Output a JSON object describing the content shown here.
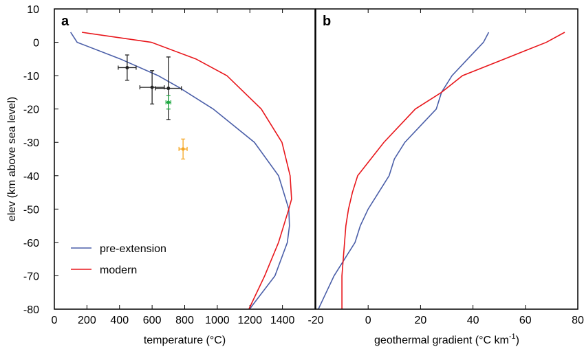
{
  "chart_data": [
    {
      "type": "line",
      "panel_label": "a",
      "xlabel": "temperature (°C)",
      "ylabel": "elev (km above sea level)",
      "xlim": [
        0,
        1600
      ],
      "xticks": [
        0,
        200,
        400,
        600,
        800,
        1000,
        1200,
        1400
      ],
      "ylim": [
        -80,
        10
      ],
      "yticks": [
        -80,
        -70,
        -60,
        -50,
        -40,
        -30,
        -20,
        -10,
        0,
        10
      ],
      "legend": "lower left",
      "series": [
        {
          "name": "pre-extension",
          "color": "#4a5ea8",
          "x": [
            100,
            140,
            405,
            637,
            764,
            975,
            1228,
            1376,
            1439,
            1443,
            1430,
            1354,
            1198
          ],
          "values": [
            3,
            0,
            -5,
            -10,
            -13.5,
            -20,
            -30,
            -40,
            -50,
            -55,
            -60,
            -70,
            -80
          ]
        },
        {
          "name": "modern",
          "color": "#e8161b",
          "x": [
            169,
            595,
            869,
            1059,
            1270,
            1397,
            1447,
            1456,
            1439,
            1376,
            1291,
            1194
          ],
          "values": [
            3,
            0,
            -5,
            -10,
            -20,
            -30,
            -40,
            -47,
            -50,
            -60,
            -70,
            -80
          ]
        }
      ],
      "points": [
        {
          "color": "#222222",
          "x": [
            447,
            600,
            700
          ],
          "values": [
            -7.6,
            -13.5,
            -13.8
          ],
          "xerr": [
            55,
            75,
            80
          ],
          "yerr": [
            3.8,
            5,
            9.4
          ]
        },
        {
          "color": "#22aa44",
          "x": [
            700
          ],
          "values": [
            -18
          ],
          "xerr": [
            15
          ],
          "yerr": [
            2
          ]
        },
        {
          "color": "#f5a623",
          "x": [
            790
          ],
          "values": [
            -32
          ],
          "xerr": [
            25
          ],
          "yerr": [
            3
          ]
        }
      ]
    },
    {
      "type": "line",
      "panel_label": "b",
      "xlabel": [
        "geothermal gradient (°C km",
        "-1",
        ")"
      ],
      "xlim": [
        -20,
        80
      ],
      "xticks": [
        -20,
        0,
        20,
        40,
        60,
        80
      ],
      "ylim": [
        -80,
        10
      ],
      "series": [
        {
          "color": "#4a5ea8",
          "x": [
            46,
            44,
            38,
            32,
            28,
            26,
            20,
            14,
            10,
            8,
            4,
            0,
            -3,
            -5,
            -9,
            -13,
            -16,
            -19
          ],
          "values": [
            3,
            0,
            -5,
            -10,
            -15,
            -20,
            -25,
            -30,
            -35,
            -40,
            -45,
            -50,
            -55,
            -60,
            -65,
            -70,
            -75,
            -80
          ]
        },
        {
          "color": "#e8161b",
          "x": [
            75,
            68,
            52,
            36,
            28,
            18,
            12,
            6,
            1,
            -4,
            -6,
            -7.5,
            -8.5,
            -9,
            -9.5,
            -10,
            -10,
            -10
          ],
          "values": [
            3,
            0,
            -5,
            -10,
            -15,
            -20,
            -25,
            -30,
            -35,
            -40,
            -45,
            -50,
            -55,
            -60,
            -65,
            -70,
            -75,
            -80
          ]
        }
      ]
    }
  ]
}
